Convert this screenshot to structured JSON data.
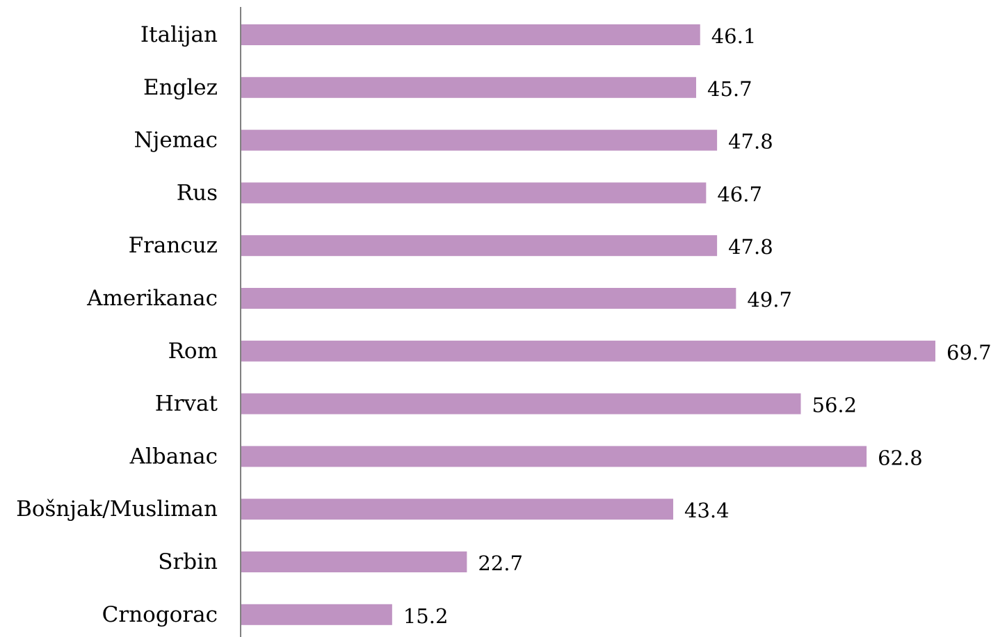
{
  "chart_data": {
    "type": "bar",
    "orientation": "horizontal",
    "categories": [
      "Italijan",
      "Englez",
      "Njemac",
      "Rus",
      "Francuz",
      "Amerikanac",
      "Rom",
      "Hrvat",
      "Albanac",
      "Bošnjak/Musliman",
      "Srbin",
      "Crnogorac"
    ],
    "values": [
      46.1,
      45.7,
      47.8,
      46.7,
      47.8,
      49.7,
      69.7,
      56.2,
      62.8,
      43.4,
      22.7,
      15.2
    ],
    "value_labels": [
      "46.1",
      "45.7",
      "47.8",
      "46.7",
      "47.8",
      "49.7",
      "69.7",
      "56.2",
      "62.8",
      "43.4",
      "22.7",
      "15.2"
    ],
    "xlim": [
      0,
      69.7
    ],
    "bar_color": "#bf93c2",
    "axis_color": "#808080",
    "grid": false,
    "legend": "none"
  }
}
